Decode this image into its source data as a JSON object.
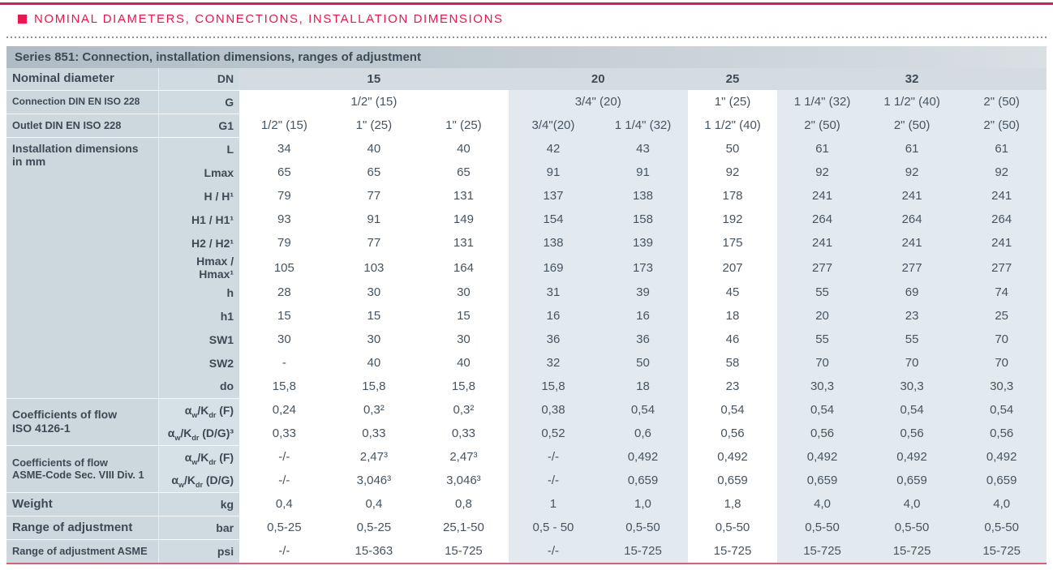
{
  "page": {
    "heading": "NOMINAL DIAMETERS, CONNECTIONS, INSTALLATION DIMENSIONS"
  },
  "colors": {
    "accent_red": "#e8174f",
    "bottom_rule_pink": "#e25c77",
    "band_blue": "#e2eaf0",
    "band_white": "#ffffff",
    "header_gray": "#b7c3cb",
    "label_gray_blue": "#cdd7de",
    "text_slate": "#47545f"
  },
  "table": {
    "title": "Series 851: Connection, installation dimensions, ranges of adjustment",
    "band_pattern": [
      "w",
      "w",
      "w",
      "b",
      "b",
      "w",
      "b",
      "b",
      "b"
    ],
    "rows": [
      {
        "id": "dn",
        "left": {
          "lines": [
            "Nominal diameter"
          ],
          "size": "lg",
          "span": 1
        },
        "param": "DN",
        "cells": [
          {
            "t": "15",
            "s": 3
          },
          {
            "t": "20",
            "s": 2
          },
          {
            "t": "25",
            "s": 1
          },
          {
            "t": "32",
            "s": 3
          }
        ]
      },
      {
        "id": "g",
        "left": {
          "lines": [
            "Connection DIN EN ISO 228"
          ],
          "size": "sm",
          "span": 1
        },
        "param": "G",
        "cells": [
          {
            "t": "1/2\" (15)",
            "s": 3
          },
          {
            "t": "3/4\" (20)",
            "s": 2
          },
          {
            "t": "1\" (25)",
            "s": 1
          },
          {
            "t": "1 1/4\" (32)",
            "s": 1
          },
          {
            "t": "1 1/2\" (40)",
            "s": 1
          },
          {
            "t": "2\" (50)",
            "s": 1
          }
        ]
      },
      {
        "id": "g1",
        "left": {
          "lines": [
            "Outlet DIN EN ISO 228"
          ],
          "size": "sm2",
          "span": 1
        },
        "param": "G1",
        "cells": [
          "1/2\" (15)",
          "1\" (25)",
          "1\" (25)",
          "3/4\"(20)",
          "1 1/4\" (32)",
          "1 1/2\" (40)",
          "2\" (50)",
          "2\" (50)",
          "2\" (50)"
        ]
      },
      {
        "id": "l",
        "left": {
          "lines": [
            "Installation dimensions",
            "in mm"
          ],
          "size": "md",
          "span": 11,
          "align": "top"
        },
        "param": "L",
        "cells": [
          "34",
          "40",
          "40",
          "42",
          "43",
          "50",
          "61",
          "61",
          "61"
        ]
      },
      {
        "id": "lmax",
        "param": "Lmax",
        "cells": [
          "65",
          "65",
          "65",
          "91",
          "91",
          "92",
          "92",
          "92",
          "92"
        ]
      },
      {
        "id": "h_h",
        "param": "H / H¹",
        "cells": [
          "79",
          "77",
          "131",
          "137",
          "138",
          "178",
          "241",
          "241",
          "241"
        ]
      },
      {
        "id": "h1_h1",
        "param": "H1 / H1¹",
        "cells": [
          "93",
          "91",
          "149",
          "154",
          "158",
          "192",
          "264",
          "264",
          "264"
        ]
      },
      {
        "id": "h2_h2",
        "param": "H2 / H2¹",
        "cells": [
          "79",
          "77",
          "131",
          "138",
          "139",
          "175",
          "241",
          "241",
          "241"
        ]
      },
      {
        "id": "hmax",
        "param": "Hmax / Hmax¹",
        "cells": [
          "105",
          "103",
          "164",
          "169",
          "173",
          "207",
          "277",
          "277",
          "277"
        ]
      },
      {
        "id": "h",
        "param": "h",
        "cells": [
          "28",
          "30",
          "30",
          "31",
          "39",
          "45",
          "55",
          "69",
          "74"
        ]
      },
      {
        "id": "h1",
        "param": "h1",
        "cells": [
          "15",
          "15",
          "15",
          "16",
          "16",
          "18",
          "20",
          "23",
          "25"
        ]
      },
      {
        "id": "sw1",
        "param": "SW1",
        "cells": [
          "30",
          "30",
          "30",
          "36",
          "36",
          "46",
          "55",
          "55",
          "70"
        ]
      },
      {
        "id": "sw2",
        "param": "SW2",
        "cells": [
          "-",
          "40",
          "40",
          "32",
          "50",
          "58",
          "70",
          "70",
          "70"
        ]
      },
      {
        "id": "do",
        "param": "do",
        "cells": [
          "15,8",
          "15,8",
          "15,8",
          "15,8",
          "18",
          "23",
          "30,3",
          "30,3",
          "30,3"
        ]
      },
      {
        "id": "iso_f",
        "left": {
          "lines": [
            "Coefficients of flow",
            "ISO 4126-1"
          ],
          "size": "md",
          "span": 2
        },
        "param": "α~w~/K~dr~ (F)",
        "cells": [
          "0,24",
          "0,3²",
          "0,3²",
          "0,38",
          "0,54",
          "0,54",
          "0,54",
          "0,54",
          "0,54"
        ]
      },
      {
        "id": "iso_dg",
        "param": "α~w~/K~dr~ (D/G)³",
        "cells": [
          "0,33",
          "0,33",
          "0,33",
          "0,52",
          "0,6",
          "0,56",
          "0,56",
          "0,56",
          "0,56"
        ]
      },
      {
        "id": "asme_f",
        "left": {
          "lines": [
            "Coefficients of flow",
            "ASME-Code Sec. VIII Div. 1"
          ],
          "size": "sm2",
          "span": 2
        },
        "param": "α~w~/K~dr~ (F)",
        "cells": [
          "-/-",
          "2,47³",
          "2,47³",
          "-/-",
          "0,492",
          "0,492",
          "0,492",
          "0,492",
          "0,492"
        ]
      },
      {
        "id": "asme_dg",
        "param": "α~w~/K~dr~ (D/G)",
        "cells": [
          "-/-",
          "3,046³",
          "3,046³",
          "-/-",
          "0,659",
          "0,659",
          "0,659",
          "0,659",
          "0,659"
        ]
      },
      {
        "id": "kg",
        "left": {
          "lines": [
            "Weight"
          ],
          "size": "lg",
          "span": 1
        },
        "param": "kg",
        "cells": [
          "0,4",
          "0,4",
          "0,8",
          "1",
          "1,0",
          "1,8",
          "4,0",
          "4,0",
          "4,0"
        ]
      },
      {
        "id": "bar",
        "left": {
          "lines": [
            "Range of adjustment"
          ],
          "size": "lg",
          "span": 1
        },
        "param": "bar",
        "cells": [
          "0,5-25",
          "0,5-25",
          "25,1-50",
          "0,5 - 50",
          "0,5-50",
          "0,5-50",
          "0,5-50",
          "0,5-50",
          "0,5-50"
        ]
      },
      {
        "id": "psi",
        "left": {
          "lines": [
            "Range of adjustment ASME"
          ],
          "size": "sm2",
          "span": 1
        },
        "param": "psi",
        "cells": [
          "-/-",
          "15-363",
          "15-725",
          "-/-",
          "15-725",
          "15-725",
          "15-725",
          "15-725",
          "15-725"
        ]
      }
    ]
  }
}
